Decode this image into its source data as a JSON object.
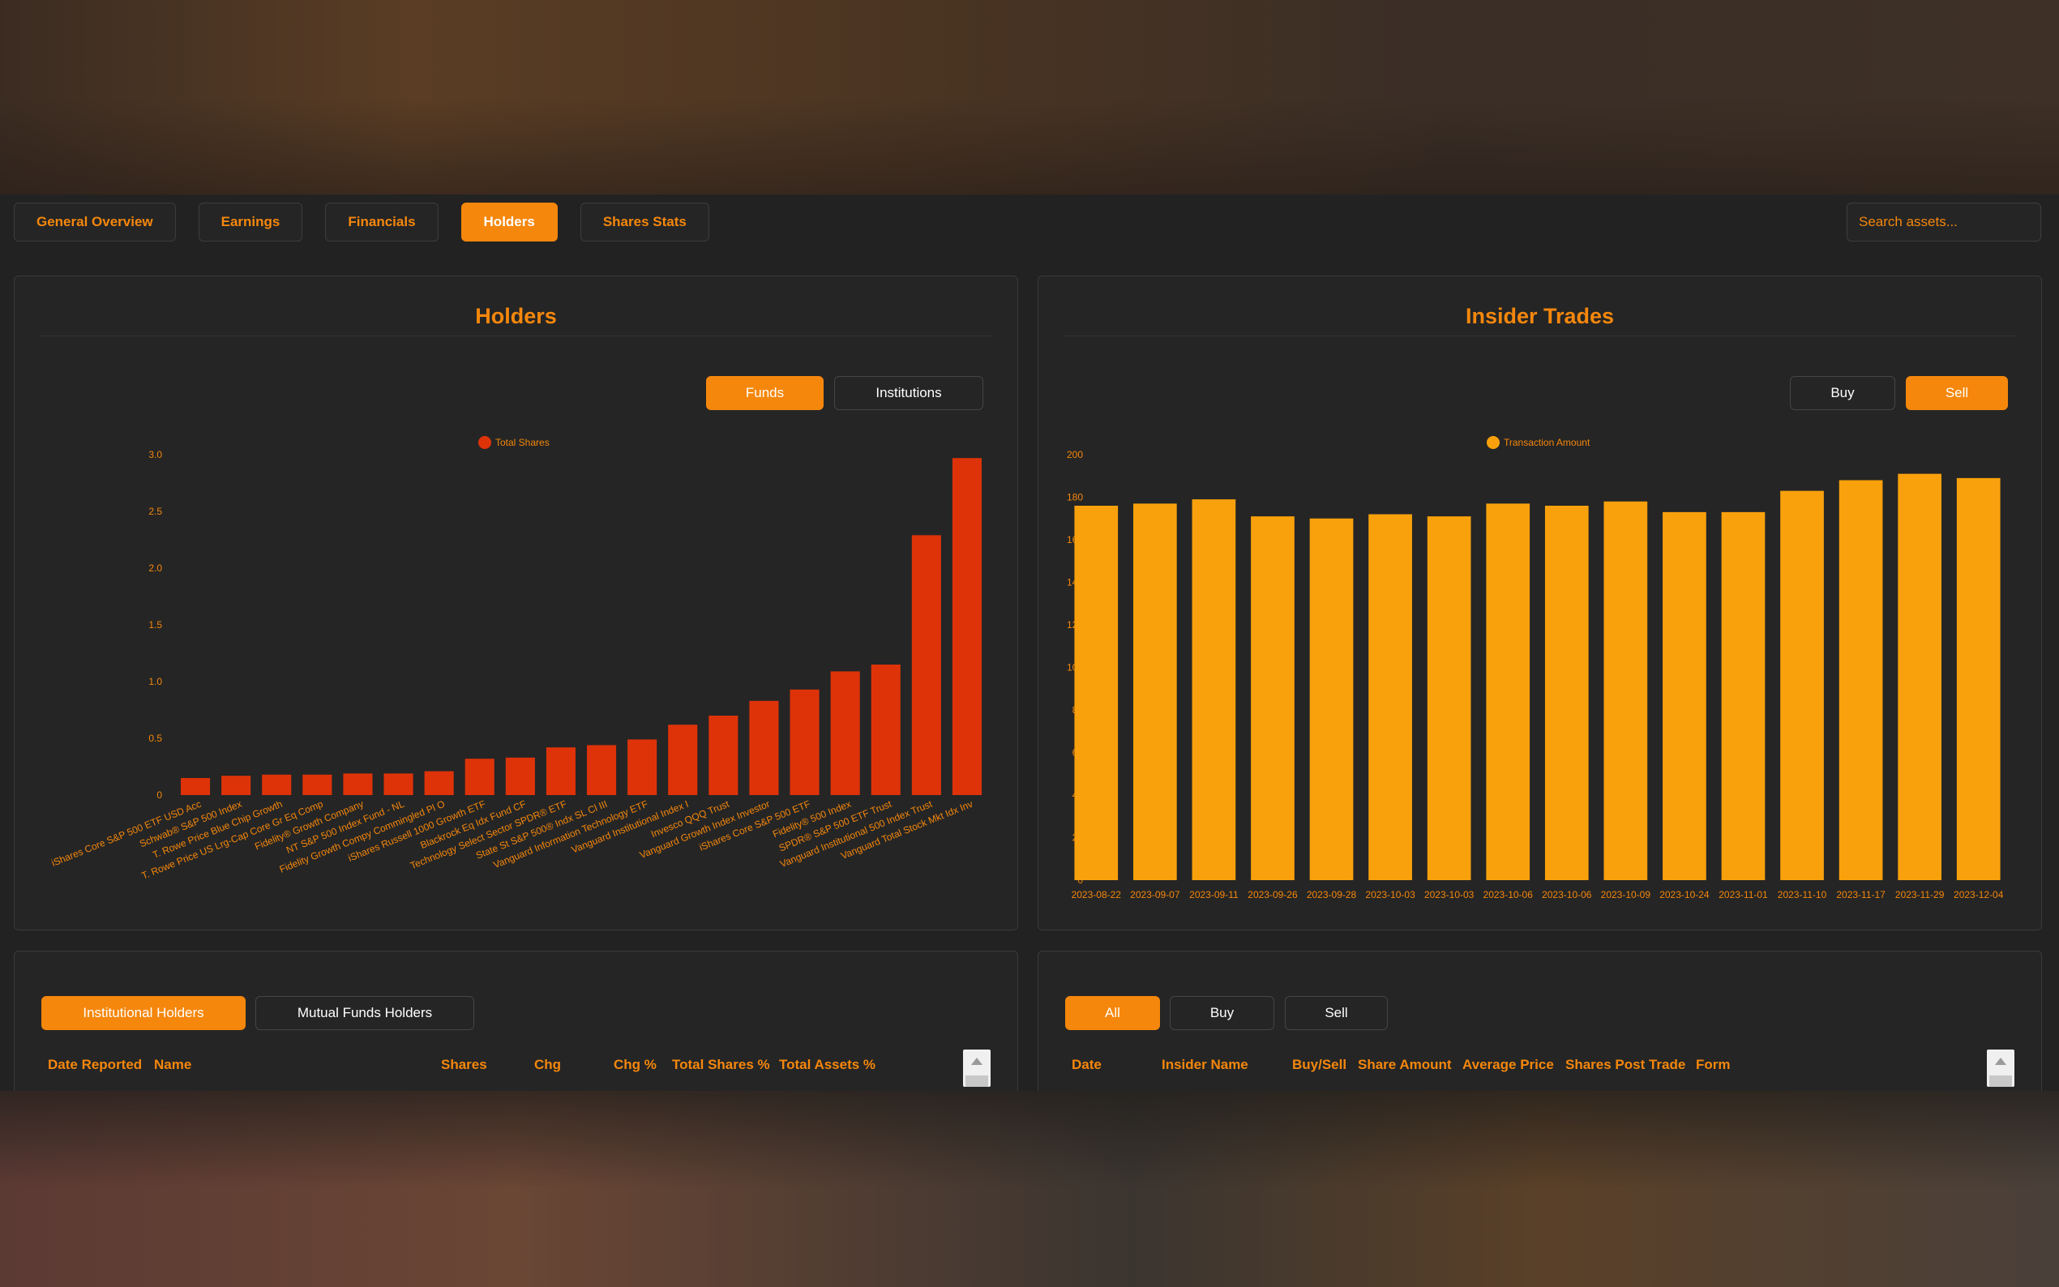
{
  "nav": {
    "tabs": [
      {
        "label": "General Overview",
        "active": false
      },
      {
        "label": "Earnings",
        "active": false
      },
      {
        "label": "Financials",
        "active": false
      },
      {
        "label": "Holders",
        "active": true
      },
      {
        "label": "Shares Stats",
        "active": false
      }
    ],
    "search_placeholder": "Search assets..."
  },
  "holders_panel": {
    "title": "Holders",
    "toggles": [
      {
        "label": "Funds",
        "active": true
      },
      {
        "label": "Institutions",
        "active": false
      }
    ]
  },
  "insider_panel": {
    "title": "Insider Trades",
    "toggles": [
      {
        "label": "Buy",
        "active": false
      },
      {
        "label": "Sell",
        "active": true
      }
    ]
  },
  "holders_table": {
    "toggles": [
      {
        "label": "Institutional Holders",
        "active": true
      },
      {
        "label": "Mutual Funds Holders",
        "active": false
      }
    ],
    "columns": [
      "Date Reported",
      "Name",
      "Shares",
      "Chg",
      "Chg %",
      "Total Shares %",
      "Total Assets %"
    ]
  },
  "insider_table": {
    "toggles": [
      {
        "label": "All",
        "active": true
      },
      {
        "label": "Buy",
        "active": false
      },
      {
        "label": "Sell",
        "active": false
      }
    ],
    "columns": [
      "Date",
      "Insider Name",
      "Buy/Sell",
      "Share Amount",
      "Average Price",
      "Shares Post Trade",
      "Form"
    ]
  },
  "badge_label": "@",
  "colors": {
    "accent": "#f5870c",
    "holders_bar": "#de3309",
    "insider_bar": "#f9a10c",
    "panel": "#252525"
  },
  "chart_data": [
    {
      "type": "bar",
      "legend": "Total Shares",
      "categories": [
        "iShares Core S&P 500 ETF USD Acc",
        "Schwab® S&P 500 Index",
        "T. Rowe Price Blue Chip Growth",
        "T. Rowe Price US Lrg-Cap Core Gr Eq Comp",
        "Fidelity® Growth Company",
        "NT S&P 500 Index Fund - NL",
        "Fidelity Growth Compy Commingled Pl O",
        "iShares Russell 1000 Growth ETF",
        "Blackrock Eq Idx Fund CF",
        "Technology Select Sector SPDR® ETF",
        "State St S&P 500® Indx SL Cl III",
        "Vanguard Information Technology ETF",
        "Vanguard Institutional Index I",
        "Invesco QQQ Trust",
        "Vanguard Growth Index Investor",
        "iShares Core S&P 500 ETF",
        "Fidelity® 500 Index",
        "SPDR® S&P 500 ETF Trust",
        "Vanguard Institutional 500 Index Trust",
        "Vanguard Total Stock Mkt Idx Inv"
      ],
      "values": [
        0.15,
        0.17,
        0.18,
        0.18,
        0.19,
        0.19,
        0.21,
        0.32,
        0.33,
        0.42,
        0.44,
        0.49,
        0.62,
        0.7,
        0.83,
        0.93,
        1.09,
        1.15,
        2.29,
        2.97
      ],
      "yticks": [
        "0",
        "0.5",
        "1.0",
        "1.5",
        "2.0",
        "2.5",
        "3.0"
      ],
      "ylim": [
        0,
        3.0
      ]
    },
    {
      "type": "bar",
      "legend": "Transaction Amount",
      "categories": [
        "2023-08-22",
        "2023-09-07",
        "2023-09-11",
        "2023-09-26",
        "2023-09-28",
        "2023-10-03",
        "2023-10-03",
        "2023-10-06",
        "2023-10-06",
        "2023-10-09",
        "2023-10-24",
        "2023-11-01",
        "2023-11-10",
        "2023-11-17",
        "2023-11-29",
        "2023-12-04"
      ],
      "values": [
        176,
        177,
        179,
        171,
        170,
        172,
        171,
        177,
        176,
        178,
        173,
        173,
        183,
        188,
        191,
        189
      ],
      "yticks": [
        "0",
        "20",
        "40",
        "60",
        "80",
        "100",
        "120",
        "140",
        "160",
        "180",
        "200"
      ],
      "ylim": [
        0,
        200
      ]
    }
  ]
}
